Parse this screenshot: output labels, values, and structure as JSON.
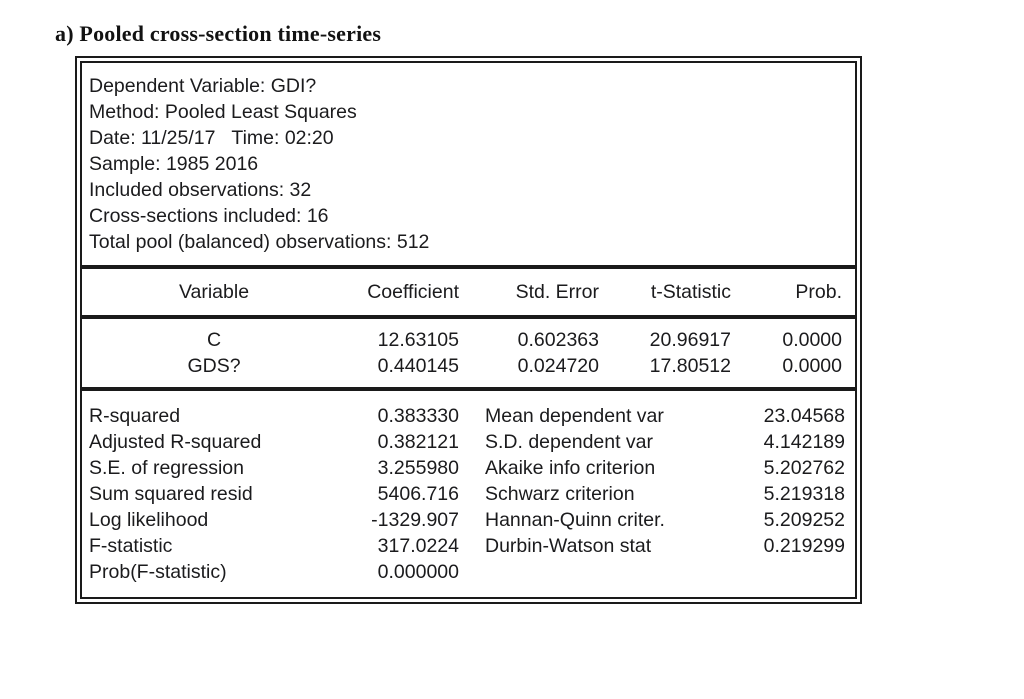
{
  "page": {
    "title": "a) Pooled cross-section time-series"
  },
  "output": {
    "header_lines": [
      "Dependent Variable: GDI?",
      "Method: Pooled Least Squares",
      "Date: 11/25/17   Time: 02:20",
      "Sample: 1985 2016",
      "Included observations: 32",
      "Cross-sections included: 16",
      "Total pool (balanced) observations: 512"
    ],
    "columns": {
      "variable": "Variable",
      "coefficient": "Coefficient",
      "std_error": "Std. Error",
      "t_statistic": "t-Statistic",
      "prob": "Prob."
    },
    "coefficients": [
      {
        "variable": "C",
        "coefficient": "12.63105",
        "std_error": "0.602363",
        "t_statistic": "20.96917",
        "prob": "0.0000"
      },
      {
        "variable": "GDS?",
        "coefficient": "0.440145",
        "std_error": "0.024720",
        "t_statistic": "17.80512",
        "prob": "0.0000"
      }
    ],
    "stats_left": [
      {
        "label": "R-squared",
        "value": "0.383330"
      },
      {
        "label": "Adjusted R-squared",
        "value": "0.382121"
      },
      {
        "label": "S.E. of regression",
        "value": "3.255980"
      },
      {
        "label": "Sum squared resid",
        "value": "5406.716"
      },
      {
        "label": "Log likelihood",
        "value": "-1329.907"
      },
      {
        "label": "F-statistic",
        "value": "317.0224"
      },
      {
        "label": "Prob(F-statistic)",
        "value": "0.000000"
      }
    ],
    "stats_right": [
      {
        "label": "Mean dependent var",
        "value": "23.04568"
      },
      {
        "label": "S.D. dependent var",
        "value": "4.142189"
      },
      {
        "label": "Akaike info criterion",
        "value": "5.202762"
      },
      {
        "label": "Schwarz criterion",
        "value": "5.219318"
      },
      {
        "label": "Hannan-Quinn criter.",
        "value": "5.209252"
      },
      {
        "label": "Durbin-Watson stat",
        "value": "0.219299"
      }
    ]
  },
  "colors": {
    "text": "#1b1b1d",
    "border": "#1a1a1a",
    "background": "#ffffff"
  }
}
